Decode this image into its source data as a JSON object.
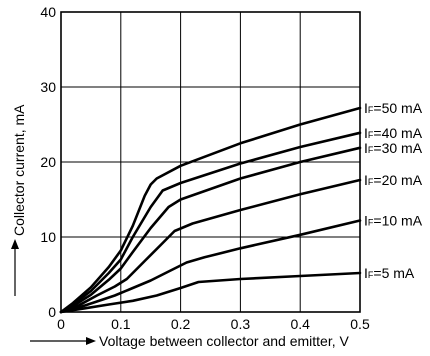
{
  "chart_data": {
    "type": "line",
    "title": "",
    "xlabel": "Voltage between collector and emitter, V",
    "ylabel": "Collector current, mA",
    "xlim": [
      0,
      0.5
    ],
    "ylim": [
      0,
      40
    ],
    "grid": true,
    "x_ticks": [
      0,
      0.1,
      0.2,
      0.3,
      0.4,
      0.5
    ],
    "x_tick_labels": [
      "0",
      "0.1",
      "0.2",
      "0.3",
      "0.4",
      "0.5"
    ],
    "y_ticks": [
      0,
      10,
      20,
      30,
      40
    ],
    "y_tick_labels": [
      "0",
      "10",
      "20",
      "30",
      "40"
    ],
    "series": [
      {
        "name": "IF=50 mA",
        "label_main": "I",
        "label_sub": "F",
        "label_rest": "=50 mA",
        "points": [
          [
            0,
            0
          ],
          [
            0.02,
            1.2
          ],
          [
            0.05,
            3.3
          ],
          [
            0.08,
            6.0
          ],
          [
            0.1,
            8.2
          ],
          [
            0.12,
            11.5
          ],
          [
            0.14,
            15.5
          ],
          [
            0.15,
            17.0
          ],
          [
            0.16,
            17.8
          ],
          [
            0.2,
            19.5
          ],
          [
            0.3,
            22.5
          ],
          [
            0.4,
            25.0
          ],
          [
            0.5,
            27.2
          ]
        ]
      },
      {
        "name": "IF=40 mA",
        "label_main": "I",
        "label_sub": "F",
        "label_rest": "=40 mA",
        "points": [
          [
            0,
            0
          ],
          [
            0.02,
            1.0
          ],
          [
            0.05,
            2.8
          ],
          [
            0.08,
            5.2
          ],
          [
            0.1,
            7.0
          ],
          [
            0.12,
            10.0
          ],
          [
            0.15,
            14.0
          ],
          [
            0.17,
            16.2
          ],
          [
            0.2,
            17.2
          ],
          [
            0.3,
            19.8
          ],
          [
            0.4,
            22.0
          ],
          [
            0.5,
            23.9
          ]
        ]
      },
      {
        "name": "IF=30 mA",
        "label_main": "I",
        "label_sub": "F",
        "label_rest": "=30 mA",
        "points": [
          [
            0,
            0
          ],
          [
            0.02,
            0.8
          ],
          [
            0.05,
            2.3
          ],
          [
            0.08,
            4.3
          ],
          [
            0.1,
            5.8
          ],
          [
            0.12,
            8.0
          ],
          [
            0.15,
            11.2
          ],
          [
            0.18,
            14.0
          ],
          [
            0.2,
            15.0
          ],
          [
            0.3,
            17.8
          ],
          [
            0.4,
            20.0
          ],
          [
            0.5,
            21.9
          ]
        ]
      },
      {
        "name": "IF=20 mA",
        "label_main": "I",
        "label_sub": "F",
        "label_rest": "=20 mA",
        "points": [
          [
            0,
            0
          ],
          [
            0.03,
            0.9
          ],
          [
            0.06,
            2.2
          ],
          [
            0.09,
            3.4
          ],
          [
            0.11,
            4.4
          ],
          [
            0.14,
            6.8
          ],
          [
            0.17,
            9.2
          ],
          [
            0.19,
            10.8
          ],
          [
            0.22,
            11.8
          ],
          [
            0.3,
            13.6
          ],
          [
            0.4,
            15.7
          ],
          [
            0.5,
            17.6
          ]
        ]
      },
      {
        "name": "IF=10 mA",
        "label_main": "I",
        "label_sub": "F",
        "label_rest": "=10 mA",
        "points": [
          [
            0,
            0
          ],
          [
            0.03,
            0.6
          ],
          [
            0.06,
            1.4
          ],
          [
            0.09,
            2.2
          ],
          [
            0.12,
            3.2
          ],
          [
            0.15,
            4.2
          ],
          [
            0.18,
            5.4
          ],
          [
            0.21,
            6.6
          ],
          [
            0.24,
            7.3
          ],
          [
            0.3,
            8.5
          ],
          [
            0.4,
            10.3
          ],
          [
            0.5,
            12.2
          ]
        ]
      },
      {
        "name": "IF=5 mA",
        "label_main": "I",
        "label_sub": "F",
        "label_rest": "=5 mA",
        "points": [
          [
            0,
            0
          ],
          [
            0.04,
            0.5
          ],
          [
            0.08,
            1.0
          ],
          [
            0.12,
            1.5
          ],
          [
            0.16,
            2.2
          ],
          [
            0.2,
            3.2
          ],
          [
            0.23,
            4.0
          ],
          [
            0.3,
            4.4
          ],
          [
            0.4,
            4.8
          ],
          [
            0.5,
            5.2
          ]
        ]
      }
    ]
  }
}
